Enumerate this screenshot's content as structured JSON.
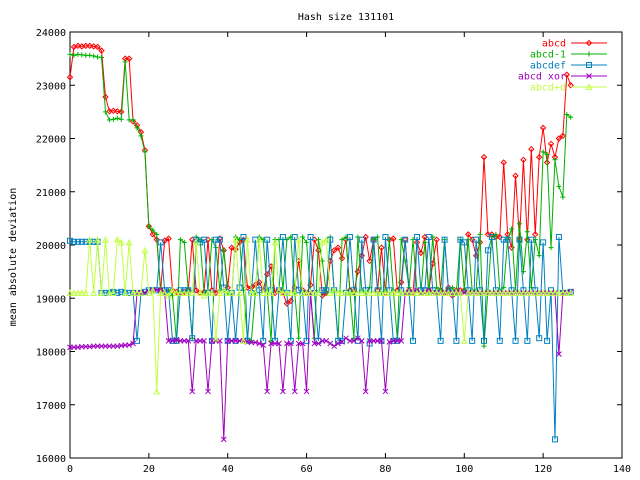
{
  "chart_data": {
    "type": "line",
    "title": "Hash size 131101",
    "xlabel": "",
    "ylabel": "mean absolute deviation",
    "xlim": [
      0,
      140
    ],
    "ylim": [
      16000,
      24000
    ],
    "xticks": [
      0,
      20,
      40,
      60,
      80,
      100,
      120,
      140
    ],
    "yticks": [
      16000,
      17000,
      18000,
      19000,
      20000,
      21000,
      22000,
      23000,
      24000
    ],
    "grid": false,
    "legend_position": "top-right",
    "series": [
      {
        "name": "abcd",
        "color": "#ff0000",
        "marker": "diamond",
        "values": [
          23150,
          23720,
          23740,
          23730,
          23740,
          23740,
          23730,
          23720,
          23650,
          22780,
          22510,
          22520,
          22510,
          22500,
          23500,
          23500,
          22320,
          22250,
          22120,
          21780,
          20350,
          20200,
          20100,
          19150,
          20080,
          20120,
          19150,
          19120,
          19100,
          19120,
          19150,
          20100,
          19150,
          19100,
          19120,
          20100,
          19150,
          19100,
          20120,
          19900,
          19200,
          19950,
          19920,
          20050,
          20100,
          19200,
          19200,
          19250,
          19300,
          19150,
          19450,
          19600,
          19100,
          19150,
          19100,
          18900,
          18950,
          19200,
          19700,
          19150,
          19100,
          19250,
          20100,
          19900,
          19050,
          19100,
          19700,
          19900,
          19950,
          19750,
          20100,
          19150,
          19100,
          19500,
          19800,
          20150,
          19700,
          20100,
          19150,
          19950,
          19100,
          20100,
          20120,
          19150,
          19300,
          20100,
          19150,
          19100,
          20050,
          19850,
          20150,
          19150,
          19650,
          20100,
          19150,
          19100,
          19200,
          19050,
          19150,
          19150,
          19150,
          20200,
          20100,
          19800,
          20050,
          21650,
          20200,
          20200,
          20150,
          20150,
          21550,
          20200,
          19950,
          21300,
          20100,
          21600,
          20100,
          21800,
          20200,
          21650,
          22200,
          21550,
          21900,
          21650,
          22000,
          22050,
          23200,
          23000
        ],
        "x_start": 0
      },
      {
        "name": "abcd-1",
        "color": "#00b000",
        "marker": "plus",
        "values": [
          23580,
          23560,
          23580,
          23570,
          23560,
          23560,
          23550,
          23530,
          23520,
          22500,
          22350,
          22360,
          22380,
          22360,
          23440,
          22350,
          22350,
          22200,
          22050,
          21750,
          20350,
          20280,
          20200,
          19100,
          19100,
          19150,
          19050,
          18200,
          20100,
          20050,
          19150,
          18250,
          20150,
          20100,
          19100,
          19150,
          20100,
          19950,
          19150,
          19900,
          19100,
          19050,
          20150,
          20100,
          19150,
          18250,
          18200,
          19100,
          20150,
          20100,
          19150,
          18200,
          20100,
          20100,
          19150,
          20100,
          20150,
          19100,
          18250,
          20150,
          20050,
          19100,
          18250,
          20100,
          19700,
          19100,
          20150,
          19150,
          18250,
          20100,
          20150,
          19100,
          18250,
          20150,
          19150,
          19100,
          19200,
          20100,
          20150,
          19100,
          19150,
          20100,
          19150,
          18250,
          20100,
          19700,
          19200,
          20100,
          19150,
          19100,
          20050,
          19100,
          20150,
          19200,
          19150,
          20100,
          19150,
          19200,
          19100,
          20100,
          19150,
          20100,
          19150,
          19150,
          20200,
          18100,
          19150,
          20150,
          20200,
          19150,
          19200,
          20100,
          20300,
          19150,
          20400,
          19500,
          20250,
          19200,
          20100,
          19800,
          21750,
          21700,
          19950,
          21600,
          21100,
          20900,
          22450,
          22400
        ],
        "x_start": 0
      },
      {
        "name": "abcdef",
        "color": "#0080c0",
        "marker": "square",
        "values": [
          20080,
          20060,
          20060,
          20060,
          20060,
          20060,
          20060,
          20060,
          19100,
          19100,
          19100,
          19120,
          19100,
          19120,
          19100,
          19100,
          19100,
          18200,
          19100,
          19120,
          19150,
          19150,
          19150,
          20050,
          19150,
          19150,
          18200,
          18200,
          19150,
          19150,
          19150,
          18250,
          20100,
          20050,
          20100,
          19100,
          18200,
          20100,
          20100,
          19200,
          18200,
          19100,
          18200,
          19200,
          20150,
          18200,
          19100,
          20100,
          19150,
          18200,
          20100,
          19150,
          18200,
          19150,
          20150,
          19100,
          18200,
          20150,
          19150,
          19100,
          18200,
          20150,
          19100,
          18200,
          19150,
          19150,
          20100,
          19150,
          18200,
          18200,
          19100,
          20150,
          19150,
          18200,
          20100,
          19150,
          18150,
          20100,
          19150,
          18200,
          20150,
          19150,
          18200,
          18200,
          19150,
          20100,
          19100,
          18200,
          20150,
          19150,
          19150,
          20150,
          19150,
          19100,
          18200,
          20100,
          19150,
          19100,
          18200,
          20100,
          20050,
          19150,
          18200,
          20100,
          19150,
          18200,
          19900,
          20150,
          19150,
          18200,
          20100,
          20100,
          19150,
          18200,
          20100,
          19150,
          18200,
          20100,
          19150,
          18250,
          20050,
          18200,
          19150,
          16350,
          20150,
          19100,
          19100,
          19120
        ],
        "x_start": 0
      },
      {
        "name": "abcd xor",
        "color": "#a000c0",
        "marker": "cross",
        "values": [
          18080,
          18080,
          18080,
          18090,
          18090,
          18090,
          18100,
          18100,
          18100,
          18100,
          18100,
          18100,
          18100,
          18110,
          18120,
          18120,
          18150,
          19100,
          19100,
          19100,
          19120,
          19150,
          19150,
          19150,
          19100,
          18200,
          18200,
          18220,
          18200,
          18200,
          18200,
          17250,
          18200,
          18200,
          18200,
          17250,
          18200,
          18200,
          18200,
          16350,
          18200,
          18200,
          18200,
          18200,
          18200,
          18180,
          18170,
          18170,
          18150,
          18120,
          17250,
          18150,
          18150,
          18150,
          17250,
          18150,
          18150,
          17250,
          18150,
          18150,
          17250,
          19100,
          18150,
          18150,
          18200,
          18200,
          18150,
          18100,
          18150,
          18180,
          18250,
          18200,
          18200,
          18250,
          18200,
          17250,
          18200,
          18200,
          18200,
          18200,
          17250,
          18180,
          18200,
          18200,
          18200,
          19100,
          19100,
          19120,
          19150,
          19100,
          19100,
          19150,
          19100,
          19100,
          19100,
          19100,
          19100,
          19100,
          19100,
          19100,
          19100,
          19100,
          19100,
          19100,
          19100,
          19100,
          19100,
          19100,
          19100,
          19100,
          19100,
          19100,
          19100,
          19100,
          19100,
          19100,
          19100,
          19100,
          19100,
          19100,
          19100,
          19100,
          19100,
          19100,
          17950,
          19100,
          19100,
          19120
        ],
        "x_start": 0
      },
      {
        "name": "abcd+d",
        "color": "#c0ff40",
        "marker": "triangle",
        "values": [
          19100,
          19100,
          19100,
          19100,
          19100,
          20100,
          19100,
          20100,
          19100,
          20100,
          19100,
          19100,
          20100,
          20050,
          19100,
          20050,
          19100,
          19100,
          19100,
          19900,
          19100,
          19150,
          17250,
          19100,
          19100,
          19050,
          19150,
          19100,
          19100,
          19100,
          19100,
          19100,
          20050,
          19100,
          19050,
          19100,
          19100,
          18250,
          19100,
          19150,
          19100,
          19100,
          20100,
          19100,
          18200,
          20100,
          19100,
          19100,
          20100,
          19100,
          19100,
          19100,
          20050,
          19150,
          19100,
          19100,
          19100,
          19100,
          20100,
          19100,
          19100,
          19100,
          19100,
          19100,
          20050,
          20100,
          19100,
          19150,
          19100,
          19100,
          19100,
          19100,
          19100,
          19100,
          19100,
          19100,
          19100,
          19100,
          19100,
          19100,
          19100,
          19100,
          19100,
          19100,
          19100,
          19100,
          19100,
          19100,
          19100,
          19100,
          19100,
          19100,
          19100,
          19100,
          19100,
          19100,
          19100,
          19100,
          19100,
          19100,
          18200,
          19100,
          19100,
          19100,
          19100,
          19100,
          19100,
          19100,
          19100,
          19100,
          19100,
          19100,
          19100,
          19100,
          19100,
          19100,
          19100,
          19100,
          19100,
          19100,
          19100,
          19100,
          19100,
          19100,
          19100,
          19100,
          19100,
          19100
        ],
        "x_start": 0
      }
    ]
  }
}
